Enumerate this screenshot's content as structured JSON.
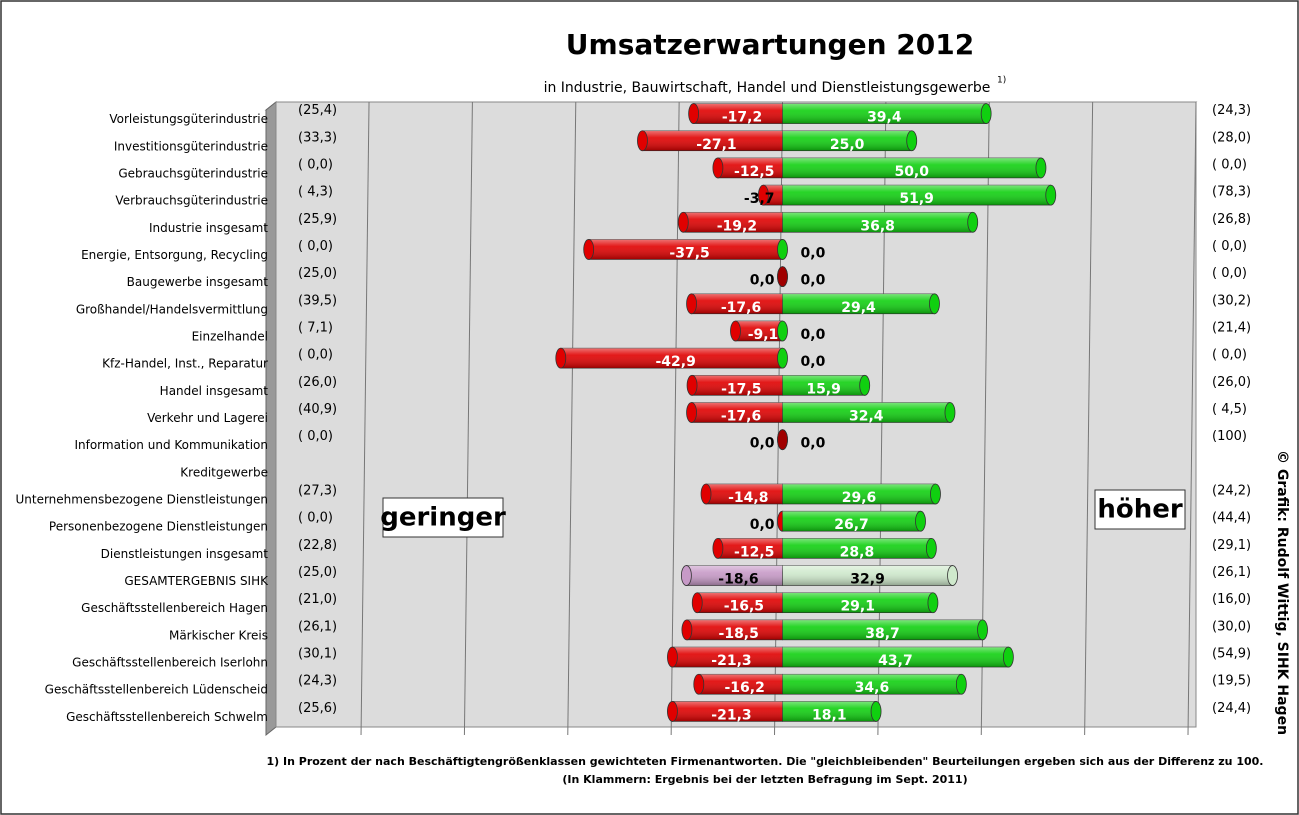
{
  "chart_data": {
    "type": "diverging_bar",
    "title": "Umsatzerwartungen 2012",
    "subtitle": "in Industrie, Bauwirtschaft, Handel und Dienstleistungsgewerbe",
    "subtitle_note": "1)",
    "categories": [
      "Vorleistungsgüterindustrie",
      "Investitionsgüterindustrie",
      "Gebrauchsgüterindustrie",
      "Verbrauchsgüterindustrie",
      "Industrie insgesamt",
      "Energie, Entsorgung, Recycling",
      "Baugewerbe insgesamt",
      "Großhandel/Handelsvermittlung",
      "Einzelhandel",
      "Kfz-Handel, Inst., Reparatur",
      "Handel insgesamt",
      "Verkehr und Lagerei",
      "Information und Kommunikation",
      "Kreditgewerbe",
      "Unternehmensbezogene Dienstleistungen",
      "Personenbezogene Dienstleistungen",
      "Dienstleistungen insgesamt",
      "GESAMTERGEBNIS SIHK",
      "Geschäftsstellenbereich Hagen",
      "Märkischer Kreis",
      "Geschäftsstellenbereich Iserlohn",
      "Geschäftsstellenbereich Lüdenscheid",
      "Geschäftsstellenbereich Schwelm"
    ],
    "series": [
      {
        "color": "#e00000",
        "colors": [
          "#e00000",
          "#e00000",
          "#e00000",
          "#e00000",
          "#e00000",
          "#e00000",
          "#a00000",
          "#e00000",
          "#e00000",
          "#e00000",
          "#e00000",
          "#e00000",
          "#a00000",
          "#e00000",
          "#e00000",
          "#e00000",
          "#e00000",
          "#c79ac7",
          "#e00000",
          "#e00000",
          "#e00000",
          "#e00000",
          "#e00000"
        ],
        "values": [
          -17.2,
          -27.1,
          -12.5,
          -3.7,
          -19.2,
          -37.5,
          0,
          -17.6,
          -9.1,
          -42.9,
          -17.5,
          -17.6,
          0,
          null,
          -14.8,
          0,
          -12.5,
          -18.6,
          -16.5,
          -18.5,
          -21.3,
          -16.2,
          -21.3
        ],
        "value_labels": [
          "-17,2",
          "-27,1",
          "-12,5",
          "-3,7",
          "-19,2",
          "-37,5",
          "0,0",
          "-17,6",
          "-9,1",
          "-42,9",
          "-17,5",
          "-17,6",
          "0,0",
          null,
          "-14,8",
          "0,0",
          "-12,5",
          "-18,6",
          "-16,5",
          "-18,5",
          "-21,3",
          "-16,2",
          "-21,3"
        ]
      },
      {
        "color": "#10d010",
        "colors": [
          "#10d010",
          "#10d010",
          "#10d010",
          "#10d010",
          "#10d010",
          "#10d010",
          "#a00000",
          "#10d010",
          "#10d010",
          "#10d010",
          "#10d010",
          "#10d010",
          "#a00000",
          "#10d010",
          "#10d010",
          "#10d010",
          "#10d010",
          "#cfe9cc",
          "#10d010",
          "#10d010",
          "#10d010",
          "#10d010",
          "#10d010"
        ],
        "values": [
          39.4,
          25.0,
          50.0,
          51.9,
          36.8,
          0,
          0,
          29.4,
          0,
          0,
          15.9,
          32.4,
          0,
          null,
          29.6,
          26.7,
          28.8,
          32.9,
          29.1,
          38.7,
          43.7,
          34.6,
          18.1
        ],
        "value_labels": [
          "39,4",
          "25,0",
          "50,0",
          "51,9",
          "36,8",
          "0,0",
          "0,0",
          "29,4",
          "0,0",
          "0,0",
          "15,9",
          "32,4",
          "0,0",
          null,
          "29,6",
          "26,7",
          "28,8",
          "32,9",
          "29,1",
          "38,7",
          "43,7",
          "34,6",
          "18,1"
        ]
      }
    ],
    "previous_left": [
      "(25,4)",
      "(33,3)",
      "( 0,0)",
      "( 4,3)",
      "(25,9)",
      "( 0,0)",
      "(25,0)",
      "(39,5)",
      "( 7,1)",
      "( 0,0)",
      "(26,0)",
      "(40,9)",
      "( 0,0)",
      null,
      "(27,3)",
      "( 0,0)",
      "(22,8)",
      "(25,0)",
      "(21,0)",
      "(26,1)",
      "(30,1)",
      "(24,3)",
      "(25,6)"
    ],
    "previous_right": [
      "(24,3)",
      "(28,0)",
      "( 0,0)",
      "(78,3)",
      "(26,8)",
      "( 0,0)",
      "( 0,0)",
      "(30,2)",
      "(21,4)",
      "( 0,0)",
      "(26,0)",
      "( 4,5)",
      "(100)",
      null,
      "(24,2)",
      "(44,4)",
      "(29,1)",
      "(26,1)",
      "(16,0)",
      "(30,0)",
      "(54,9)",
      "(19,5)",
      "(24,4)"
    ],
    "xlim": [
      -98,
      80
    ],
    "xticks": [
      -80,
      -60,
      -40,
      -20,
      0,
      20,
      40,
      60,
      80
    ],
    "grid": true,
    "annotation_left": "geringer",
    "annotation_right": "höher",
    "credit": "© Grafik: Rudolf Wittig, SIHK Hagen",
    "footnote": [
      "1) In Prozent der nach Beschäftigtengrößenklassen gewichteten Firmenantworten. Die \"gleichbleibenden\" Beurteilungen ergeben sich aus der Differenz zu 100.",
      "(In Klammern: Ergebnis bei der letzten Befragung im Sept. 2011)"
    ]
  }
}
